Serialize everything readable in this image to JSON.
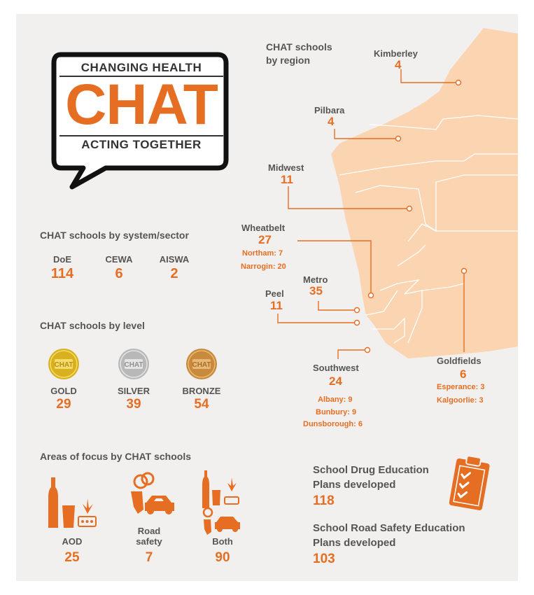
{
  "logo": {
    "top_text": "CHANGING HEALTH",
    "main_text": "CHAT",
    "bottom_text": "ACTING TOGETHER"
  },
  "region_map": {
    "title_line1": "CHAT schools",
    "title_line2": "by region",
    "regions": [
      {
        "name": "Kimberley",
        "count": "4"
      },
      {
        "name": "Pilbara",
        "count": "4"
      },
      {
        "name": "Midwest",
        "count": "11"
      },
      {
        "name": "Wheatbelt",
        "count": "27",
        "details": [
          "Northam: 7",
          "Narrogin: 20"
        ]
      },
      {
        "name": "Metro",
        "count": "35"
      },
      {
        "name": "Peel",
        "count": "11"
      },
      {
        "name": "Southwest",
        "count": "24",
        "details": [
          "Albany: 9",
          "Bunbury: 9",
          "Dunsborough: 6"
        ]
      },
      {
        "name": "Goldfields",
        "count": "6",
        "details": [
          "Esperance: 3",
          "Kalgoorlie: 3"
        ]
      }
    ]
  },
  "sector": {
    "title": "CHAT schools by system/sector",
    "items": [
      {
        "label": "DoE",
        "value": "114"
      },
      {
        "label": "CEWA",
        "value": "6"
      },
      {
        "label": "AISWA",
        "value": "2"
      }
    ]
  },
  "level": {
    "title": "CHAT schools by level",
    "medal_text": "CHAT",
    "items": [
      {
        "label": "GOLD",
        "value": "29",
        "color": "#d9b11e"
      },
      {
        "label": "SILVER",
        "value": "39",
        "color": "#b8b8b8"
      },
      {
        "label": "BRONZE",
        "value": "54",
        "color": "#c98a3c"
      }
    ]
  },
  "focus": {
    "title": "Areas of focus by CHAT schools",
    "items": [
      {
        "label": "AOD",
        "value": "25",
        "icon": "alcohol-drugs-icon"
      },
      {
        "label_line1": "Road",
        "label_line2": "safety",
        "value": "7",
        "icon": "car-keys-icon"
      },
      {
        "label": "Both",
        "value": "90",
        "icon": "alcohol-drugs-car-icon"
      }
    ]
  },
  "plans": {
    "drug": {
      "line1": "School Drug Education",
      "line2": "Plans developed",
      "value": "118"
    },
    "road": {
      "line1": "School Road Safety Education",
      "line2": "Plans developed",
      "value": "103"
    }
  },
  "colors": {
    "accent": "#e66e22",
    "map_fill": "#fbd4b2",
    "panel": "#f1f0ef",
    "text": "#555555"
  }
}
